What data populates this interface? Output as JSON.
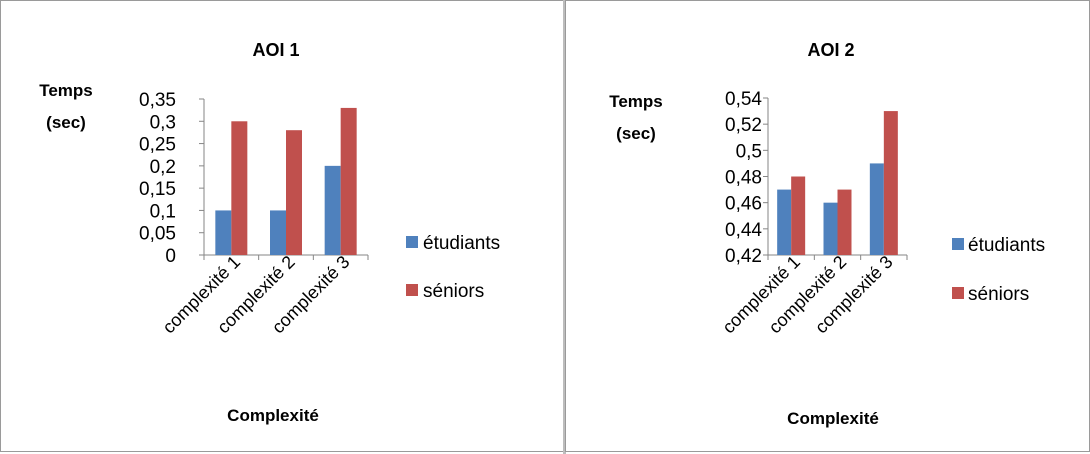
{
  "colors": {
    "etudiants": "#4f81bd",
    "seniors": "#c0504d",
    "grid": "#868686"
  },
  "chart_data": [
    {
      "type": "bar",
      "title": "AOI 1",
      "ylabel_line1": "Temps",
      "ylabel_line2": "(sec)",
      "xlabel": "Complexité",
      "categories": [
        "complexité 1",
        "complexité 2",
        "complexité 3"
      ],
      "series": [
        {
          "name": "étudiants",
          "values": [
            0.1,
            0.1,
            0.2
          ]
        },
        {
          "name": "séniors",
          "values": [
            0.3,
            0.28,
            0.33
          ]
        }
      ],
      "ylim": [
        0,
        0.35
      ],
      "yticks": [
        0,
        0.05,
        0.1,
        0.15,
        0.2,
        0.25,
        0.3,
        0.35
      ],
      "ytick_labels": [
        "0",
        "0,05",
        "0,1",
        "0,15",
        "0,2",
        "0,25",
        "0,3",
        "0,35"
      ],
      "legend": "right",
      "grid": false
    },
    {
      "type": "bar",
      "title": "AOI 2",
      "ylabel_line1": "Temps",
      "ylabel_line2": "(sec)",
      "xlabel": "Complexité",
      "categories": [
        "complexité 1",
        "complexité 2",
        "complexité 3"
      ],
      "series": [
        {
          "name": "étudiants",
          "values": [
            0.47,
            0.46,
            0.49
          ]
        },
        {
          "name": "séniors",
          "values": [
            0.48,
            0.47,
            0.53
          ]
        }
      ],
      "ylim": [
        0.42,
        0.54
      ],
      "yticks": [
        0.42,
        0.44,
        0.46,
        0.48,
        0.5,
        0.52,
        0.54
      ],
      "ytick_labels": [
        "0,42",
        "0,44",
        "0,46",
        "0,48",
        "0,5",
        "0,52",
        "0,54"
      ],
      "legend": "right",
      "grid": false
    }
  ]
}
